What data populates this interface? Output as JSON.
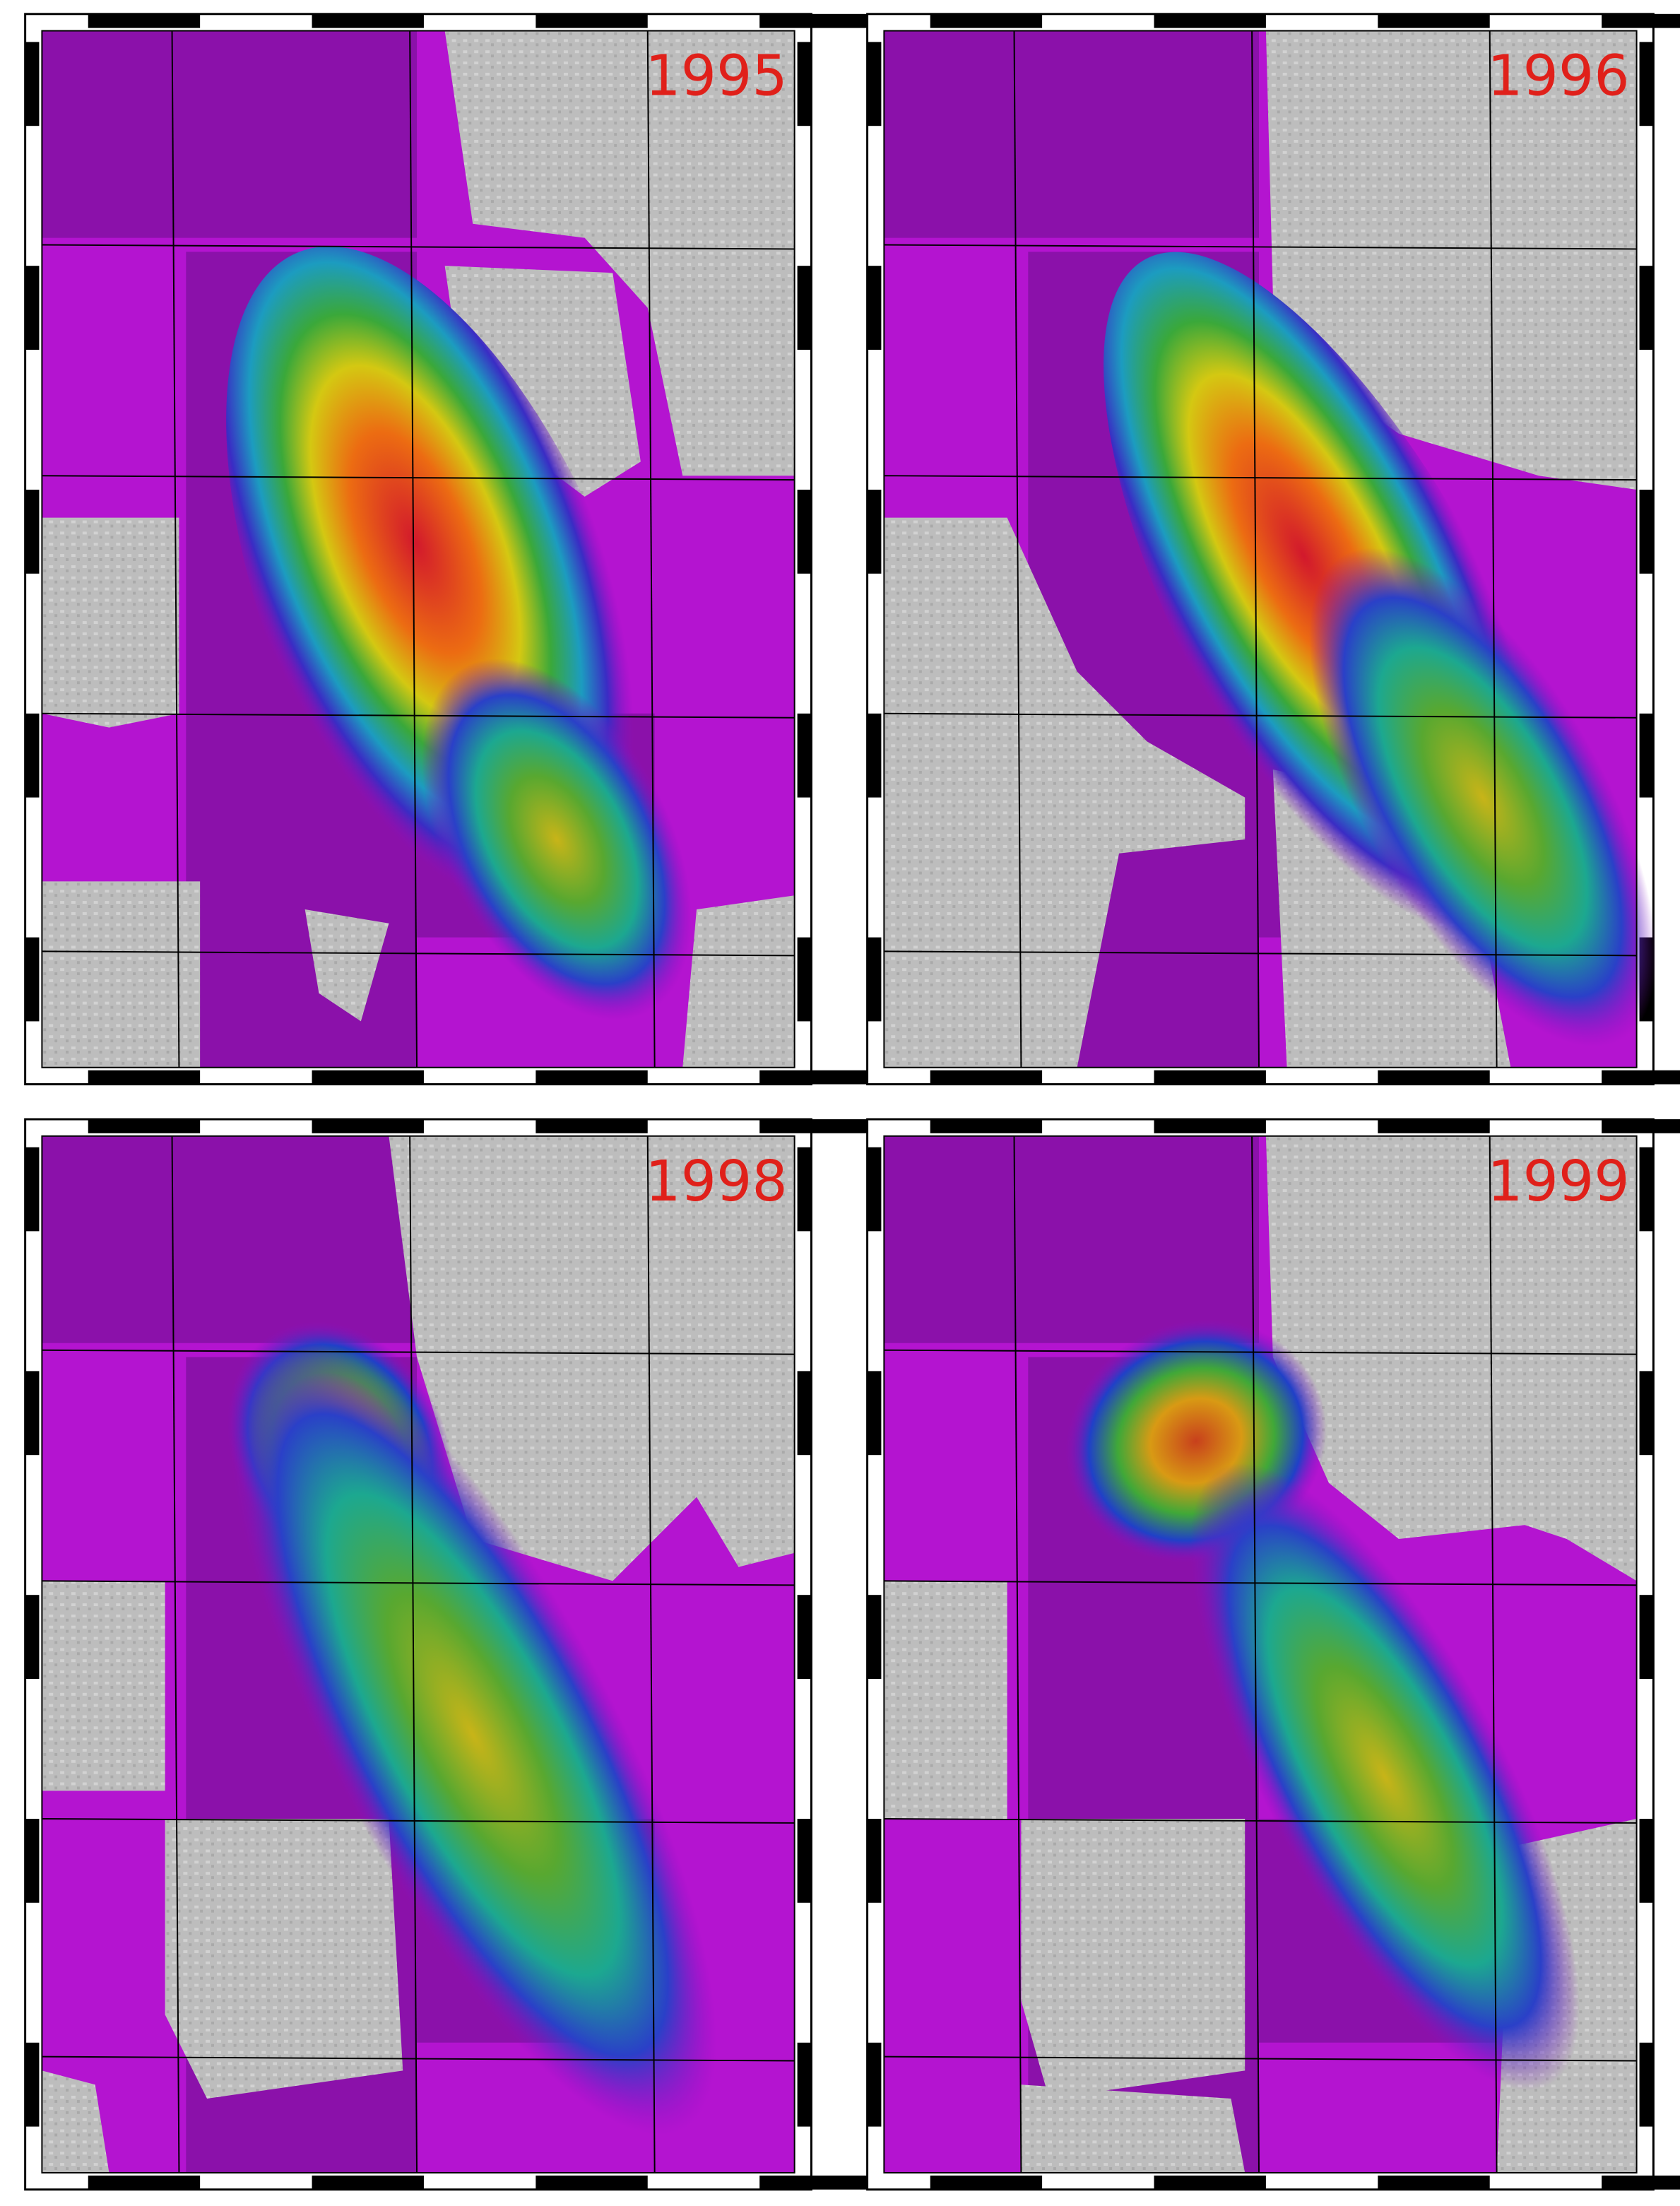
{
  "panels": [
    {
      "year": "1995"
    },
    {
      "year": "1996"
    },
    {
      "year": "1998"
    },
    {
      "year": "1999"
    }
  ]
}
